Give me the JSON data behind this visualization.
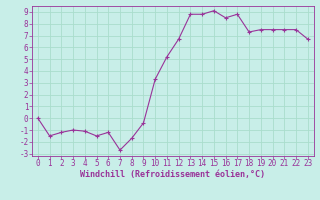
{
  "x": [
    0,
    1,
    2,
    3,
    4,
    5,
    6,
    7,
    8,
    9,
    10,
    11,
    12,
    13,
    14,
    15,
    16,
    17,
    18,
    19,
    20,
    21,
    22,
    23
  ],
  "y": [
    0.0,
    -1.5,
    -1.2,
    -1.0,
    -1.1,
    -1.5,
    -1.2,
    -2.7,
    -1.7,
    -0.4,
    3.3,
    5.2,
    6.7,
    8.8,
    8.8,
    9.1,
    8.5,
    8.8,
    7.3,
    7.5,
    7.5,
    7.5,
    7.5,
    6.7
  ],
  "line_color": "#993399",
  "marker": "+",
  "bg_color": "#c8eee8",
  "grid_color": "#aaddcc",
  "xlabel": "Windchill (Refroidissement éolien,°C)",
  "xlabel_color": "#993399",
  "tick_color": "#993399",
  "spine_color": "#993399",
  "ylim": [
    -3.2,
    9.5
  ],
  "xlim": [
    -0.5,
    23.5
  ],
  "yticks": [
    -3,
    -2,
    -1,
    0,
    1,
    2,
    3,
    4,
    5,
    6,
    7,
    8,
    9
  ],
  "xticks": [
    0,
    1,
    2,
    3,
    4,
    5,
    6,
    7,
    8,
    9,
    10,
    11,
    12,
    13,
    14,
    15,
    16,
    17,
    18,
    19,
    20,
    21,
    22,
    23
  ],
  "font_size": 5.5,
  "xlabel_fontsize": 6.0
}
